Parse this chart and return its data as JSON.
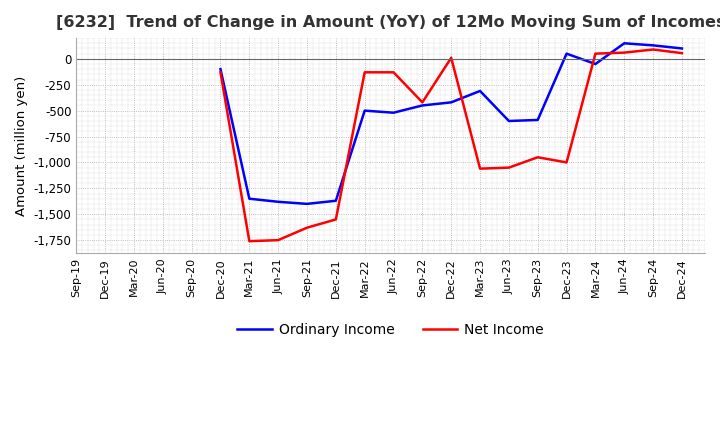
{
  "title": "[6232]  Trend of Change in Amount (YoY) of 12Mo Moving Sum of Incomes",
  "ylabel": "Amount (million yen)",
  "legend_labels": [
    "Ordinary Income",
    "Net Income"
  ],
  "line_colors": [
    "blue",
    "red"
  ],
  "x_labels": [
    "Sep-19",
    "Dec-19",
    "Mar-20",
    "Jun-20",
    "Sep-20",
    "Dec-20",
    "Mar-21",
    "Jun-21",
    "Sep-21",
    "Dec-21",
    "Mar-22",
    "Jun-22",
    "Sep-22",
    "Dec-22",
    "Mar-23",
    "Jun-23",
    "Sep-23",
    "Dec-23",
    "Mar-24",
    "Jun-24",
    "Sep-24",
    "Dec-24"
  ],
  "ordinary_income": [
    null,
    null,
    null,
    null,
    null,
    -100,
    -1350,
    -1380,
    -1400,
    -1370,
    -500,
    -520,
    -450,
    -420,
    -310,
    -600,
    -590,
    50,
    -50,
    150,
    130,
    100
  ],
  "net_income": [
    null,
    null,
    null,
    null,
    null,
    -130,
    -1760,
    -1750,
    -1630,
    -1550,
    -130,
    -130,
    -420,
    10,
    -1060,
    -1050,
    -950,
    -1000,
    50,
    60,
    90,
    55
  ],
  "ylim": [
    -1875,
    200
  ],
  "yticks": [
    0,
    -250,
    -500,
    -750,
    -1000,
    -1250,
    -1500,
    -1750
  ],
  "background_color": "#ffffff",
  "grid_color": "#aaaaaa",
  "grid_style": "dotted"
}
